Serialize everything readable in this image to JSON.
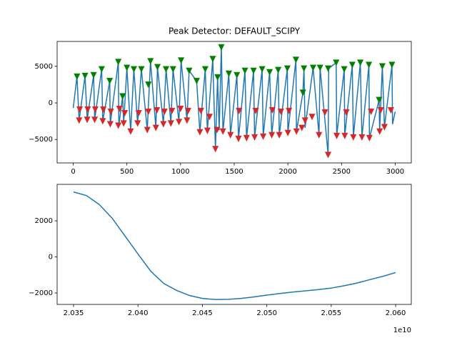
{
  "chart_data": [
    {
      "type": "line",
      "title": "Peak Detector: DEFAULT_SCIPY",
      "xlim": [
        -150,
        3150
      ],
      "ylim": [
        -8200,
        8400
      ],
      "xticks": [
        0,
        500,
        1000,
        1500,
        2000,
        2500,
        3000
      ],
      "yticks": [
        {
          "value": -5000,
          "label": "−5000"
        },
        0,
        5000
      ],
      "series": [
        {
          "color": "#1f77b4",
          "x": [
            0,
            35,
            55,
            110,
            130,
            190,
            200,
            265,
            275,
            340,
            345,
            420,
            425,
            460,
            470,
            500,
            535,
            565,
            600,
            635,
            690,
            720,
            770,
            785,
            840,
            865,
            910,
            930,
            985,
            1005,
            1060,
            1080,
            1150,
            1180,
            1230,
            1250,
            1300,
            1325,
            1345,
            1360,
            1380,
            1395,
            1450,
            1465,
            1525,
            1540,
            1600,
            1615,
            1680,
            1690,
            1760,
            1770,
            1830,
            1850,
            1910,
            1920,
            1995,
            2000,
            2075,
            2080,
            2140,
            2150,
            2160,
            2235,
            2290,
            2300,
            2375,
            2380,
            2450,
            2455,
            2525,
            2530,
            2600,
            2610,
            2675,
            2690,
            2755,
            2760,
            2850,
            2855,
            2880,
            2900,
            2970,
            2975,
            3000
          ],
          "values": [
            -700,
            3600,
            -2400,
            3700,
            -2300,
            3800,
            -2300,
            4600,
            -2500,
            3000,
            -2900,
            5600,
            -3100,
            900,
            -2800,
            4800,
            -3900,
            4600,
            -2800,
            4600,
            -3700,
            5700,
            -3400,
            4900,
            -2900,
            4600,
            -2800,
            4600,
            -2600,
            5800,
            -2400,
            4400,
            3000,
            -4000,
            4600,
            -3800,
            6000,
            -6300,
            3500,
            -3700,
            7600,
            -3900,
            4000,
            -4400,
            3800,
            -4900,
            4400,
            -4800,
            4400,
            -4700,
            4600,
            -4600,
            4200,
            -4400,
            4500,
            -4400,
            4700,
            -4100,
            5900,
            -3900,
            1400,
            4700,
            -3400,
            4800,
            -4400,
            4800,
            -7100,
            4700,
            5500,
            -4500,
            4600,
            -4500,
            5200,
            -4700,
            5500,
            -4700,
            5200,
            -4800,
            400,
            -3900,
            5000,
            -3300,
            5200,
            -2900,
            -1200
          ]
        },
        {
          "color": "#008000",
          "marker": "v",
          "x": [
            35,
            110,
            190,
            265,
            340,
            420,
            460,
            500,
            565,
            635,
            700,
            720,
            785,
            865,
            930,
            1005,
            1080,
            1150,
            1230,
            1300,
            1345,
            1380,
            1450,
            1525,
            1600,
            1680,
            1760,
            1830,
            1910,
            1995,
            2075,
            2140,
            2150,
            2235,
            2300,
            2375,
            2450,
            2525,
            2600,
            2675,
            2755,
            2850,
            2880,
            2970
          ],
          "values": [
            3600,
            3700,
            3800,
            4600,
            3000,
            5600,
            900,
            4800,
            4600,
            4600,
            2500,
            5700,
            4900,
            4600,
            4600,
            5800,
            4400,
            3000,
            4600,
            6000,
            3500,
            7600,
            4000,
            3800,
            4400,
            4400,
            4600,
            4200,
            4500,
            4700,
            5900,
            1400,
            4700,
            4800,
            4800,
            4700,
            5500,
            4600,
            5200,
            5500,
            5200,
            400,
            5000,
            5200
          ]
        },
        {
          "color": "#d62728",
          "marker": "v",
          "x": [
            55,
            60,
            130,
            135,
            200,
            205,
            275,
            280,
            345,
            350,
            420,
            430,
            470,
            480,
            535,
            600,
            610,
            690,
            700,
            770,
            780,
            840,
            850,
            910,
            920,
            985,
            1000,
            1060,
            1070,
            1180,
            1190,
            1250,
            1270,
            1325,
            1340,
            1395,
            1465,
            1540,
            1545,
            1615,
            1690,
            1700,
            1770,
            1850,
            1855,
            1920,
            1935,
            2000,
            2010,
            2080,
            2130,
            2160,
            2225,
            2290,
            2345,
            2375,
            2455,
            2530,
            2545,
            2610,
            2690,
            2760,
            2775,
            2855,
            2865,
            2900,
            2960
          ],
          "values": [
            -2400,
            -900,
            -2300,
            -900,
            -2300,
            -900,
            -2500,
            -900,
            -2900,
            -1200,
            -3100,
            -800,
            -2800,
            -1400,
            -3900,
            -2800,
            -1400,
            -3700,
            -1200,
            -3400,
            -1000,
            -2900,
            -1200,
            -2800,
            -1100,
            -2600,
            -800,
            -2400,
            -1100,
            -4000,
            -1100,
            -3800,
            -1900,
            -6300,
            -3700,
            -3900,
            -4400,
            -4900,
            -1100,
            -4800,
            -4700,
            -1100,
            -4600,
            -4400,
            -1000,
            -4400,
            -1200,
            -4100,
            -1100,
            -3900,
            -3400,
            -2400,
            -1900,
            -4400,
            -1300,
            -7100,
            -4500,
            -4500,
            -1300,
            -4700,
            -4700,
            -4800,
            -1200,
            -3900,
            -1000,
            -3300,
            -1000
          ]
        }
      ]
    },
    {
      "type": "line",
      "xlim": [
        20337250000,
        20612150000
      ],
      "ylim": [
        -2634,
        4020
      ],
      "xticks": [
        {
          "value": 20350000000,
          "label": "2.035"
        },
        {
          "value": 20400000000,
          "label": "2.040"
        },
        {
          "value": 20450000000,
          "label": "2.045"
        },
        {
          "value": 20500000000,
          "label": "2.050"
        },
        {
          "value": 20550000000,
          "label": "2.055"
        },
        {
          "value": 20600000000,
          "label": "2.060"
        }
      ],
      "x_offset_text": "1e10",
      "yticks": [
        {
          "value": -2000,
          "label": "−2000"
        },
        0,
        2000
      ],
      "series": [
        {
          "color": "#1f77b4",
          "x": [
            20350000000,
            20360000000,
            20370000000,
            20380000000,
            20390000000,
            20400000000,
            20410000000,
            20420000000,
            20430000000,
            20440000000,
            20450000000,
            20460000000,
            20470000000,
            20480000000,
            20490000000,
            20500000000,
            20510000000,
            20520000000,
            20530000000,
            20540000000,
            20550000000,
            20560000000,
            20570000000,
            20580000000,
            20590000000,
            20600000000
          ],
          "values": [
            3600,
            3400,
            2900,
            2140,
            1150,
            160,
            -800,
            -1470,
            -1860,
            -2140,
            -2300,
            -2360,
            -2350,
            -2300,
            -2220,
            -2120,
            -2030,
            -1950,
            -1880,
            -1810,
            -1730,
            -1600,
            -1450,
            -1260,
            -1080,
            -870
          ]
        }
      ]
    }
  ]
}
